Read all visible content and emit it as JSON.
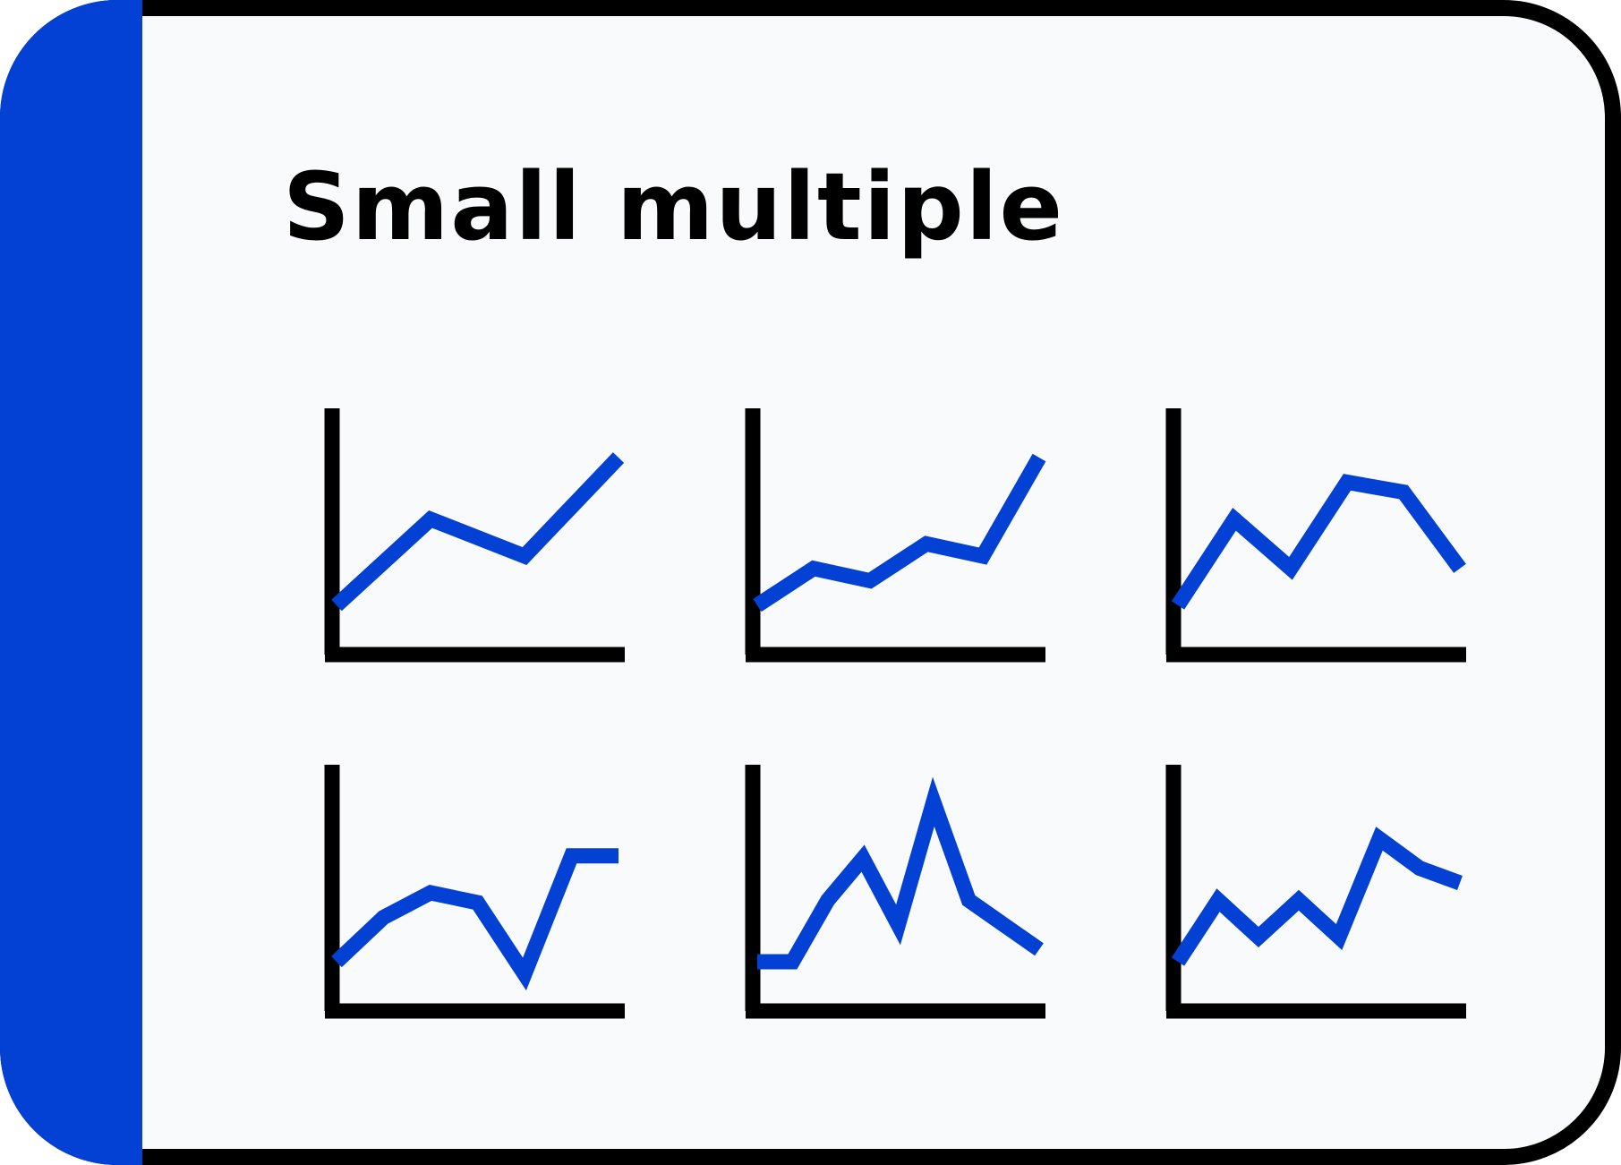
{
  "card": {
    "title": "Small multiple",
    "accent_color": "#0341D4",
    "border_color": "#000000",
    "background_color": "#F9FAFC"
  },
  "chart_data": [
    {
      "type": "line",
      "x": [
        1,
        2,
        3,
        4
      ],
      "values": [
        2.0,
        5.5,
        4.0,
        8.0
      ]
    },
    {
      "type": "line",
      "x": [
        1,
        2,
        3,
        4,
        5,
        6
      ],
      "values": [
        2.0,
        3.5,
        3.0,
        4.5,
        4.0,
        8.0
      ]
    },
    {
      "type": "line",
      "x": [
        1,
        2,
        3,
        4,
        5,
        6
      ],
      "values": [
        2.0,
        5.5,
        3.5,
        7.0,
        6.6,
        3.5
      ]
    },
    {
      "type": "line",
      "x": [
        1,
        2,
        3,
        4,
        5,
        6,
        7
      ],
      "values": [
        2.0,
        3.8,
        4.8,
        4.4,
        1.5,
        6.3,
        6.3
      ]
    },
    {
      "type": "line",
      "x": [
        1,
        2,
        3,
        4,
        5,
        6,
        7,
        8,
        9
      ],
      "values": [
        2.0,
        2.0,
        4.5,
        6.2,
        3.5,
        8.5,
        4.5,
        3.5,
        2.5
      ]
    },
    {
      "type": "line",
      "x": [
        1,
        2,
        3,
        4,
        5,
        6,
        7,
        8
      ],
      "values": [
        2.0,
        4.5,
        3.0,
        4.5,
        3.0,
        7.0,
        5.8,
        5.2
      ]
    }
  ]
}
